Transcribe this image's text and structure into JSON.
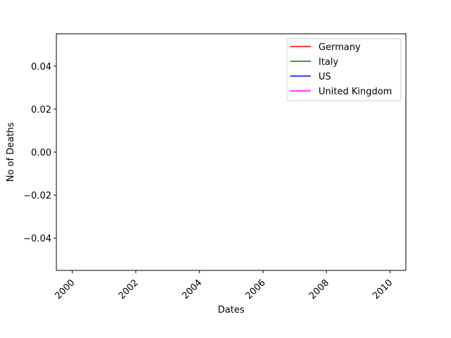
{
  "chart_data": {
    "type": "line",
    "title": "",
    "xlabel": "Dates",
    "ylabel": "No of Deaths",
    "xlim": [
      1999.5,
      2010.5
    ],
    "ylim": [
      -0.055,
      0.055
    ],
    "x_ticks": [
      "2000",
      "2002",
      "2004",
      "2006",
      "2008",
      "2010"
    ],
    "x_tick_rotation_deg": 45,
    "y_ticks": [
      "0.04",
      "0.02",
      "0.00",
      "−0.02",
      "−0.04"
    ],
    "y_tick_values": [
      0.04,
      0.02,
      0.0,
      -0.02,
      -0.04
    ],
    "x_tick_values": [
      2000,
      2002,
      2004,
      2006,
      2008,
      2010
    ],
    "grid": false,
    "legend_position": "top-right",
    "series": [
      {
        "name": "Germany",
        "color": "#ff0000",
        "x": [],
        "y": []
      },
      {
        "name": "Italy",
        "color": "#008000",
        "x": [],
        "y": []
      },
      {
        "name": "US",
        "color": "#0000ff",
        "x": [],
        "y": []
      },
      {
        "name": "United Kingdom",
        "color": "#ff00ff",
        "x": [],
        "y": []
      }
    ]
  }
}
